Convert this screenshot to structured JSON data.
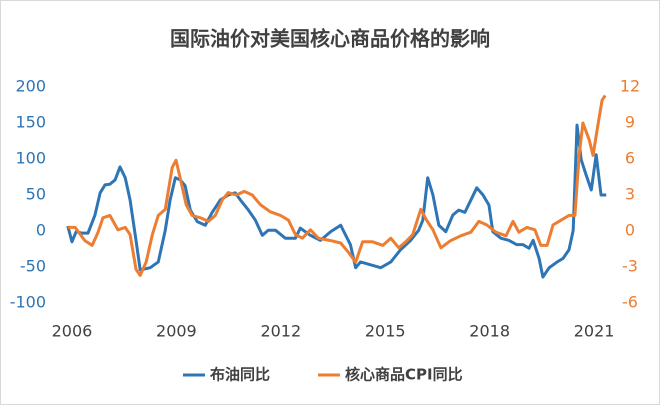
{
  "chart_data": {
    "type": "line",
    "title": "国际油价对美国核心商品价格的影响",
    "xlim": [
      2005.8,
      2021.4
    ],
    "xticks": [
      2006,
      2009,
      2012,
      2015,
      2018,
      2021
    ],
    "ylim": [
      -100,
      200
    ],
    "yticks": [
      -100,
      -50,
      0,
      50,
      100,
      150,
      200
    ],
    "y2lim": [
      -6,
      12
    ],
    "y2ticks": [
      -6,
      -3,
      0,
      3,
      6,
      9,
      12
    ],
    "legend": "bottom",
    "series": [
      {
        "name": "布油同比",
        "color": "#2e75b6",
        "axis": "y",
        "x": [
          2005.88,
          2006.0,
          2006.12,
          2006.29,
          2006.46,
          2006.66,
          2006.81,
          2006.95,
          2007.09,
          2007.24,
          2007.38,
          2007.53,
          2007.67,
          2007.84,
          2007.96,
          2008.25,
          2008.48,
          2008.68,
          2008.82,
          2008.97,
          2009.11,
          2009.25,
          2009.4,
          2009.6,
          2009.83,
          2010.03,
          2010.26,
          2010.49,
          2010.69,
          2010.84,
          2011.07,
          2011.27,
          2011.47,
          2011.64,
          2011.85,
          2012.13,
          2012.42,
          2012.56,
          2012.85,
          2013.14,
          2013.43,
          2013.72,
          2014.0,
          2014.15,
          2014.29,
          2014.58,
          2014.87,
          2015.16,
          2015.44,
          2015.73,
          2015.96,
          2016.08,
          2016.22,
          2016.37,
          2016.54,
          2016.74,
          2016.94,
          2017.11,
          2017.29,
          2017.46,
          2017.63,
          2017.81,
          2017.98,
          2018.09,
          2018.32,
          2018.55,
          2018.78,
          2018.96,
          2019.13,
          2019.25,
          2019.42,
          2019.53,
          2019.71,
          2019.94,
          2020.11,
          2020.28,
          2020.4,
          2020.51,
          2020.63,
          2020.77,
          2020.92,
          2021.06,
          2021.2,
          2021.35
        ],
        "values": [
          7,
          -15,
          -1,
          -3,
          -3,
          22,
          53,
          64,
          65,
          71,
          89,
          74,
          43,
          -13,
          -54,
          -51,
          -43,
          1,
          43,
          74,
          71,
          63,
          29,
          13,
          8,
          26,
          43,
          50,
          53,
          43,
          29,
          15,
          -6,
          1,
          1,
          -10,
          -10,
          4,
          -6,
          -13,
          -1,
          8,
          -19,
          -51,
          -43,
          -47,
          -51,
          -43,
          -26,
          -13,
          1,
          15,
          74,
          50,
          8,
          -1,
          22,
          29,
          26,
          43,
          60,
          50,
          36,
          -1,
          -10,
          -13,
          -19,
          -19,
          -24,
          -13,
          -38,
          -64,
          -51,
          -43,
          -38,
          -26,
          1,
          147,
          99,
          78,
          57,
          106,
          50,
          50
        ]
      },
      {
        "name": "核心商品CPI同比",
        "color": "#ed7d31",
        "axis": "y2",
        "x": [
          2005.88,
          2006.09,
          2006.37,
          2006.58,
          2006.75,
          2006.89,
          2007.09,
          2007.32,
          2007.53,
          2007.67,
          2007.84,
          2007.96,
          2008.13,
          2008.31,
          2008.48,
          2008.68,
          2008.88,
          2008.99,
          2009.11,
          2009.28,
          2009.45,
          2009.69,
          2009.92,
          2010.12,
          2010.32,
          2010.49,
          2010.72,
          2010.95,
          2011.18,
          2011.41,
          2011.7,
          2011.99,
          2012.22,
          2012.42,
          2012.62,
          2012.85,
          2013.08,
          2013.43,
          2013.72,
          2013.95,
          2014.15,
          2014.35,
          2014.64,
          2014.93,
          2015.16,
          2015.39,
          2015.59,
          2015.79,
          2016.02,
          2016.19,
          2016.37,
          2016.6,
          2016.88,
          2017.17,
          2017.46,
          2017.69,
          2017.92,
          2018.18,
          2018.47,
          2018.67,
          2018.84,
          2019.07,
          2019.3,
          2019.47,
          2019.65,
          2019.82,
          2020.05,
          2020.28,
          2020.45,
          2020.57,
          2020.68,
          2020.86,
          2020.97,
          2021.12,
          2021.23,
          2021.32
        ],
        "values": [
          0.3,
          0.3,
          -0.8,
          -1.2,
          -0.1,
          1.1,
          1.3,
          0.1,
          0.3,
          -0.3,
          -3.2,
          -3.7,
          -2.6,
          -0.3,
          1.3,
          1.8,
          5.3,
          5.9,
          4.4,
          2.2,
          1.3,
          1.1,
          0.8,
          1.3,
          2.6,
          3.2,
          3.0,
          3.3,
          3.0,
          2.2,
          1.6,
          1.3,
          0.9,
          -0.3,
          -0.6,
          0.1,
          -0.6,
          -0.8,
          -1.0,
          -1.8,
          -2.6,
          -0.9,
          -0.9,
          -1.2,
          -0.6,
          -1.4,
          -0.9,
          -0.3,
          1.8,
          0.9,
          0.1,
          -1.4,
          -0.8,
          -0.4,
          -0.1,
          0.8,
          0.5,
          -0.1,
          -0.4,
          0.8,
          -0.1,
          0.3,
          0.1,
          -1.2,
          -1.2,
          0.5,
          0.9,
          1.3,
          1.3,
          6.3,
          9.0,
          7.6,
          6.3,
          9.0,
          10.9,
          11.3
        ]
      }
    ]
  }
}
